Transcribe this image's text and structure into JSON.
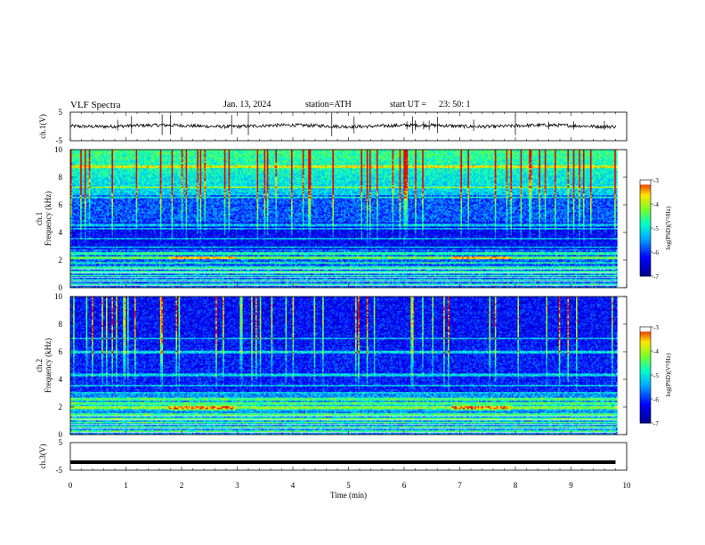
{
  "header": {
    "title": "VLF Spectra",
    "date": "Jan. 13, 2024",
    "station": "station=ATH",
    "start": "start UT =",
    "start_time": "23: 50: 1"
  },
  "chart_data": [
    {
      "type": "line",
      "name": "ch1-waveform",
      "ylabel": "ch.1(V)",
      "ylim": [
        -5,
        5
      ],
      "yticks": [
        "5",
        "-5"
      ],
      "x": [
        0,
        10
      ],
      "baseline": 0.2,
      "noise_amplitude": 0.3,
      "spike_times_min": [
        0.85,
        1.1,
        1.65,
        1.8,
        2.9,
        3.2,
        4.7,
        5.1,
        6.05,
        6.15,
        6.2,
        6.35,
        6.45,
        6.6,
        7.25,
        8.0,
        8.6,
        9.05,
        9.6
      ]
    },
    {
      "type": "heatmap",
      "name": "ch1-spectrogram",
      "ylabel": "ch.1 Frequency (kHz)",
      "ylim": [
        0,
        10
      ],
      "yticks": [
        "0",
        "2",
        "4",
        "6",
        "8",
        "10"
      ],
      "x_range_min": [
        0,
        9.8
      ],
      "colorbar": {
        "label": "log(PSD)(V²/Hz)",
        "ticks": [
          "-3",
          "-4",
          "-5",
          "-6",
          "-7"
        ],
        "range": [
          -7,
          -3
        ]
      },
      "bands_khz": [
        0.3,
        0.6,
        0.9,
        1.2,
        1.5,
        1.85,
        2.2,
        2.5,
        3.0,
        3.6,
        4.3,
        4.6,
        6.6,
        7.3,
        8.8
      ],
      "emission_khz": [
        2.1,
        2.3
      ],
      "emission_intervals_min": [
        [
          1.75,
          2.95
        ],
        [
          6.85,
          7.9
        ]
      ]
    },
    {
      "type": "heatmap",
      "name": "ch2-spectrogram",
      "ylabel": "ch.2 Frequency (kHz)",
      "ylim": [
        0,
        10
      ],
      "yticks": [
        "0",
        "2",
        "4",
        "6",
        "8",
        "10"
      ],
      "x_range_min": [
        0,
        9.8
      ],
      "colorbar": {
        "label": "log(PSD)(V²/Hz)",
        "ticks": [
          "-3",
          "-4",
          "-5",
          "-6",
          "-7"
        ],
        "range": [
          -7,
          -3
        ]
      },
      "bands_khz": [
        0.3,
        0.6,
        0.9,
        1.2,
        1.5,
        2.0,
        2.3,
        2.6,
        3.1,
        3.6,
        4.4,
        6.0,
        7.0
      ],
      "emission_khz": [
        1.8,
        2.2
      ],
      "emission_intervals_min": [
        [
          1.75,
          2.95
        ],
        [
          6.85,
          7.9
        ]
      ]
    },
    {
      "type": "line",
      "name": "ch3-waveform",
      "ylabel": "ch.3(V)",
      "ylim": [
        -5,
        5
      ],
      "yticks": [
        "5",
        "-5"
      ],
      "x": [
        0,
        9.8
      ],
      "y": [
        -2.1,
        -2.1
      ],
      "xlabel": "Time (min)",
      "xticks": [
        "0",
        "1",
        "2",
        "3",
        "4",
        "5",
        "6",
        "7",
        "8",
        "9",
        "10"
      ],
      "xlim": [
        0,
        10
      ]
    }
  ]
}
